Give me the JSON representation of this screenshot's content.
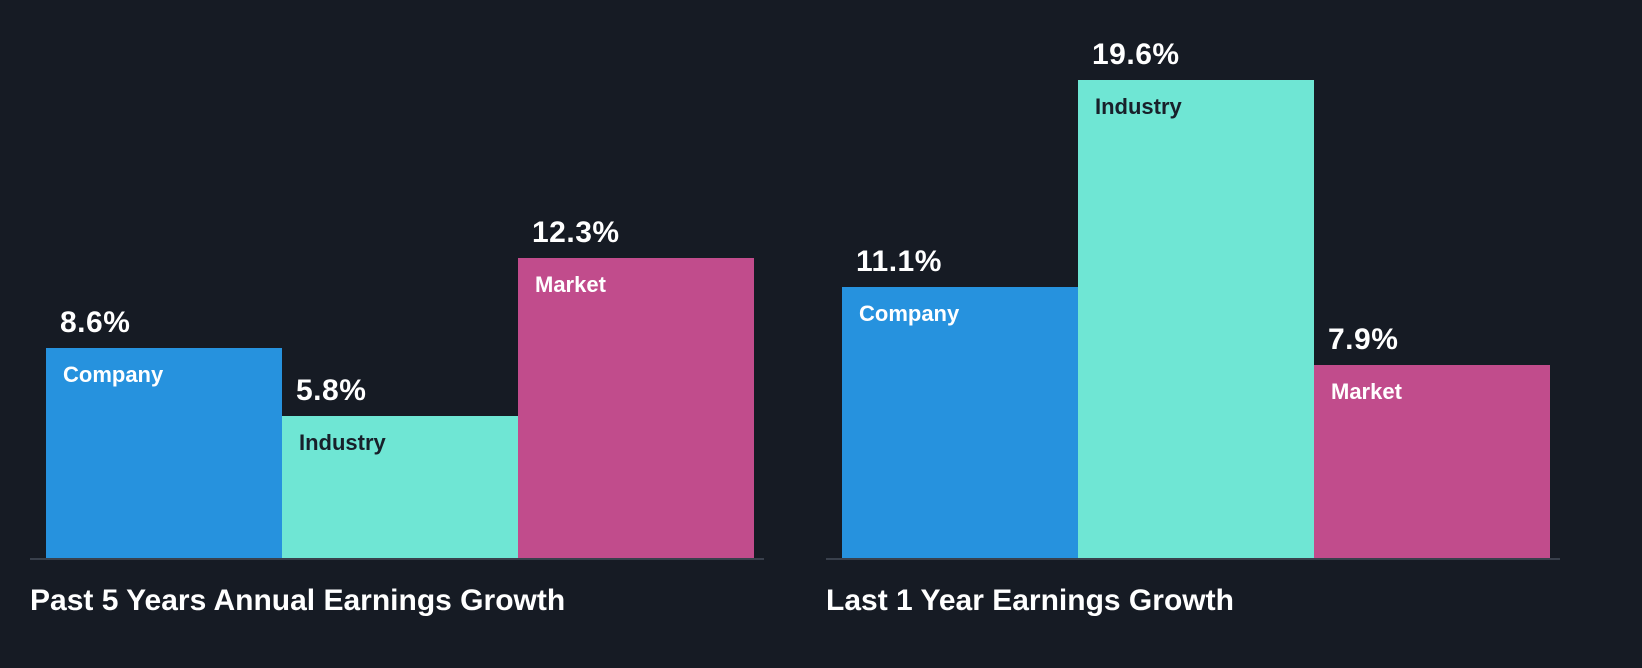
{
  "colors": {
    "background": "#161B24",
    "company_bar": "#2692DE",
    "industry_bar": "#6FE6D4",
    "market_bar": "#C14C8C",
    "baseline": "#39404C",
    "value_text": "#FFFFFF",
    "industry_label_text": "#18202A"
  },
  "chart_data": [
    {
      "type": "bar",
      "title": "Past 5 Years Annual Earnings Growth",
      "categories": [
        "Company",
        "Industry",
        "Market"
      ],
      "values": [
        8.6,
        5.8,
        12.3
      ],
      "value_labels": [
        "8.6%",
        "5.8%",
        "12.3%"
      ],
      "ylim": [
        0,
        20
      ],
      "grid": false,
      "legend": "none (labels inside bars)"
    },
    {
      "type": "bar",
      "title": "Last 1 Year Earnings Growth",
      "categories": [
        "Company",
        "Industry",
        "Market"
      ],
      "values": [
        11.1,
        19.6,
        7.9
      ],
      "value_labels": [
        "11.1%",
        "19.6%",
        "7.9%"
      ],
      "ylim": [
        0,
        20
      ],
      "grid": false,
      "legend": "none (labels inside bars)"
    }
  ]
}
